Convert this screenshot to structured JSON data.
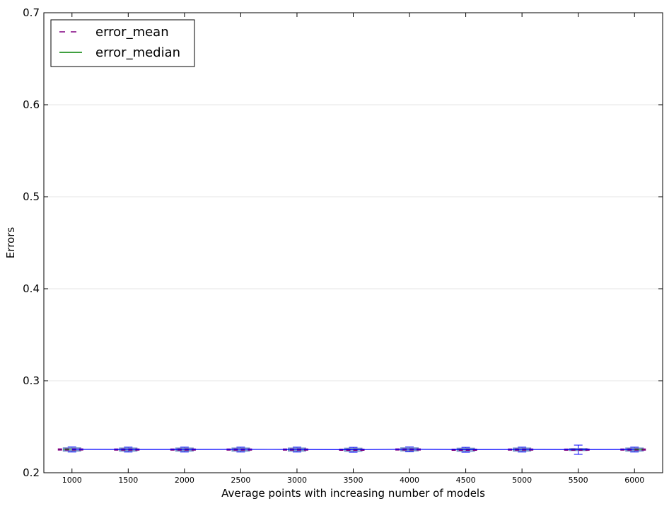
{
  "chart_data": {
    "type": "box",
    "xlabel": "Average points with increasing number of models",
    "ylabel": "Errors",
    "ylim": [
      0.2,
      0.7
    ],
    "yticks": [
      0.2,
      0.3,
      0.4,
      0.5,
      0.6,
      0.7
    ],
    "xlim": [
      750,
      6250
    ],
    "grid": "horizontal",
    "legend": {
      "placement": "top-left",
      "entries": [
        {
          "label": "error_mean",
          "style": "dashed",
          "color": "#800080"
        },
        {
          "label": "error_median",
          "style": "solid",
          "color": "#008000"
        }
      ]
    },
    "categories": [
      1000,
      1500,
      2000,
      2500,
      3000,
      3500,
      4000,
      4500,
      5000,
      5500,
      6000
    ],
    "series": [
      {
        "stat": "mean",
        "values": [
          0.2253,
          0.2252,
          0.2252,
          0.2252,
          0.2252,
          0.225,
          0.2253,
          0.225,
          0.2252,
          0.2251,
          0.2252
        ]
      },
      {
        "stat": "median",
        "values": [
          0.2254,
          0.2253,
          0.2253,
          0.2254,
          0.2253,
          0.2251,
          0.2255,
          0.2252,
          0.2253,
          0.2252,
          0.2253
        ]
      }
    ],
    "boxes": [
      {
        "x": 1000,
        "q1": 0.2238,
        "q3": 0.2268,
        "min": 0.2225,
        "max": 0.228
      },
      {
        "x": 1500,
        "q1": 0.2238,
        "q3": 0.2266,
        "min": 0.2225,
        "max": 0.2278
      },
      {
        "x": 2000,
        "q1": 0.2238,
        "q3": 0.2266,
        "min": 0.2225,
        "max": 0.2278
      },
      {
        "x": 2500,
        "q1": 0.2238,
        "q3": 0.2266,
        "min": 0.2225,
        "max": 0.2278
      },
      {
        "x": 3000,
        "q1": 0.2238,
        "q3": 0.2266,
        "min": 0.2225,
        "max": 0.2278
      },
      {
        "x": 3500,
        "q1": 0.2236,
        "q3": 0.2264,
        "min": 0.2223,
        "max": 0.2276
      },
      {
        "x": 4000,
        "q1": 0.224,
        "q3": 0.2268,
        "min": 0.2227,
        "max": 0.228
      },
      {
        "x": 4500,
        "q1": 0.2236,
        "q3": 0.2264,
        "min": 0.2223,
        "max": 0.2276
      },
      {
        "x": 5000,
        "q1": 0.2238,
        "q3": 0.2266,
        "min": 0.2225,
        "max": 0.2278
      },
      {
        "x": 5500,
        "q1": 0.2244,
        "q3": 0.226,
        "min": 0.22,
        "max": 0.23
      },
      {
        "x": 6000,
        "q1": 0.2238,
        "q3": 0.2266,
        "min": 0.2225,
        "max": 0.2278
      }
    ],
    "colors": {
      "mean": "#800080",
      "median": "#008000",
      "box": "#6f8fc8",
      "whisker": "#0000ff",
      "trend": "#0000ff",
      "grid": "#e6e6e6"
    }
  }
}
